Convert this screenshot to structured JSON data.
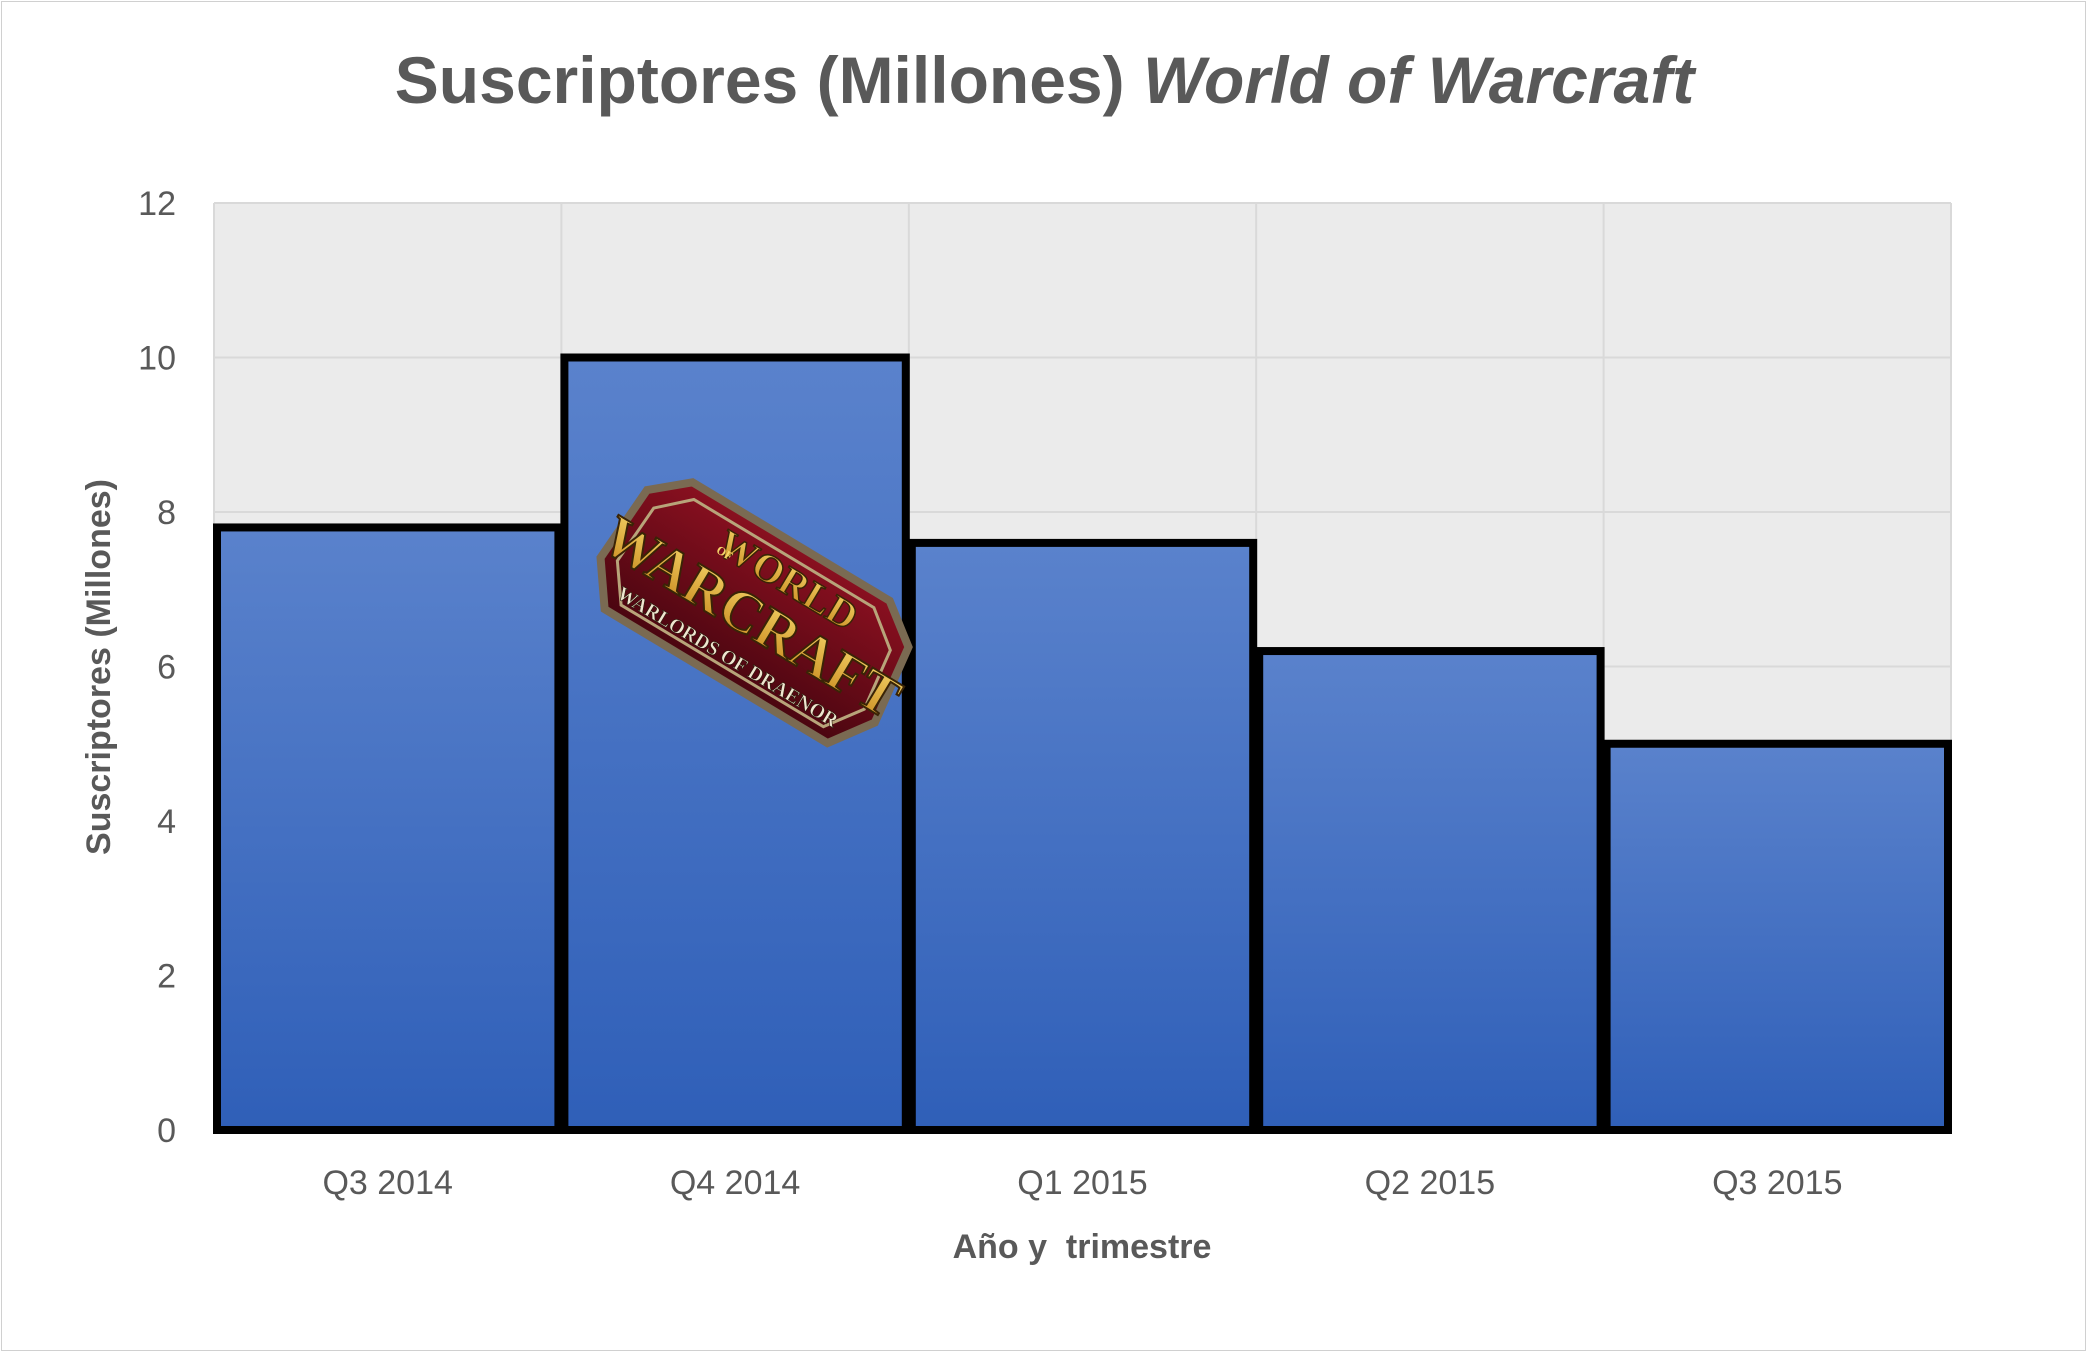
{
  "chart_data": {
    "type": "bar",
    "title": "Suscriptores (Millones)",
    "title_italic": "World of Warcraft",
    "categories": [
      "Q3 2014",
      "Q4 2014",
      "Q1 2015",
      "Q2 2015",
      "Q3 2015"
    ],
    "values": [
      7.8,
      10.0,
      7.6,
      6.2,
      5.0
    ],
    "xlabel": "Año y  trimestre",
    "ylabel": "Suscriptores (Millones)",
    "ylim": [
      0,
      12
    ],
    "yticks": [
      "0",
      "2",
      "4",
      "6",
      "8",
      "10",
      "12"
    ],
    "grid": true,
    "legend": "none",
    "colors": {
      "bar_top": "#5a82cc",
      "bar_bottom": "#2f5fb8",
      "bar_outline": "#000000",
      "plot_background": "#ebebeb",
      "gridline": "#d9d9d9",
      "text": "#595959"
    }
  },
  "logo": {
    "line1": "WORLD",
    "line_of": "OF",
    "line2": "WARCRAFT",
    "line3": "WARLORDS OF DRAENOR"
  }
}
